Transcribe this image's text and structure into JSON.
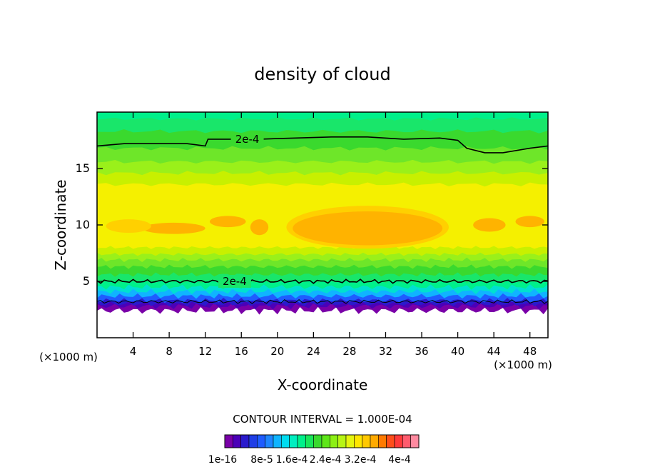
{
  "chart_data": {
    "type": "heatmap",
    "title": "density of cloud",
    "xlabel": "X-coordinate",
    "ylabel": "Z-coordinate",
    "x_unit_left": "(×1000 m)",
    "x_unit_right": "(×1000 m)",
    "xlim": [
      0,
      50
    ],
    "ylim": [
      0,
      20
    ],
    "x_ticks": [
      4,
      8,
      12,
      16,
      20,
      24,
      28,
      32,
      36,
      40,
      44,
      48
    ],
    "y_ticks": [
      5,
      10,
      15
    ],
    "contour_interval_text": "CONTOUR INTERVAL = 1.000E-04",
    "contour_labels": [
      "2e-4",
      "2e-4"
    ],
    "colorbar": {
      "tick_labels": [
        "1e-16",
        "8e-5",
        "1.6e-4",
        "2.4e-4",
        "3.2e-4",
        "4e-4"
      ],
      "colors": [
        "#7a00a8",
        "#4b00b8",
        "#2a1acc",
        "#1f3ee6",
        "#1f5cff",
        "#1f86ff",
        "#10b4ff",
        "#00dcf0",
        "#00eec0",
        "#00f08a",
        "#19e65a",
        "#3ad92e",
        "#5ee619",
        "#8cf014",
        "#b8f514",
        "#e6f50f",
        "#ffe600",
        "#ffc800",
        "#ffaa00",
        "#ff7a00",
        "#ff4e1a",
        "#ff3a3a",
        "#ff5c6e",
        "#ff8aa0"
      ]
    },
    "field_colors": {
      "orange": "#ffb300",
      "yellow_orange": "#ffd000",
      "yellow": "#f5f000",
      "yellow_green": "#c8f000",
      "lime": "#9af01a",
      "green_light": "#6ee629",
      "green": "#3ad92e",
      "green_cyan": "#19e66a",
      "spring": "#00f08a",
      "cyan": "#00e0d0",
      "sky": "#10b4ff",
      "blue": "#1f5cff",
      "deep_blue": "#2a1acc",
      "indigo": "#4b00b8",
      "purple": "#7a00a8"
    }
  }
}
